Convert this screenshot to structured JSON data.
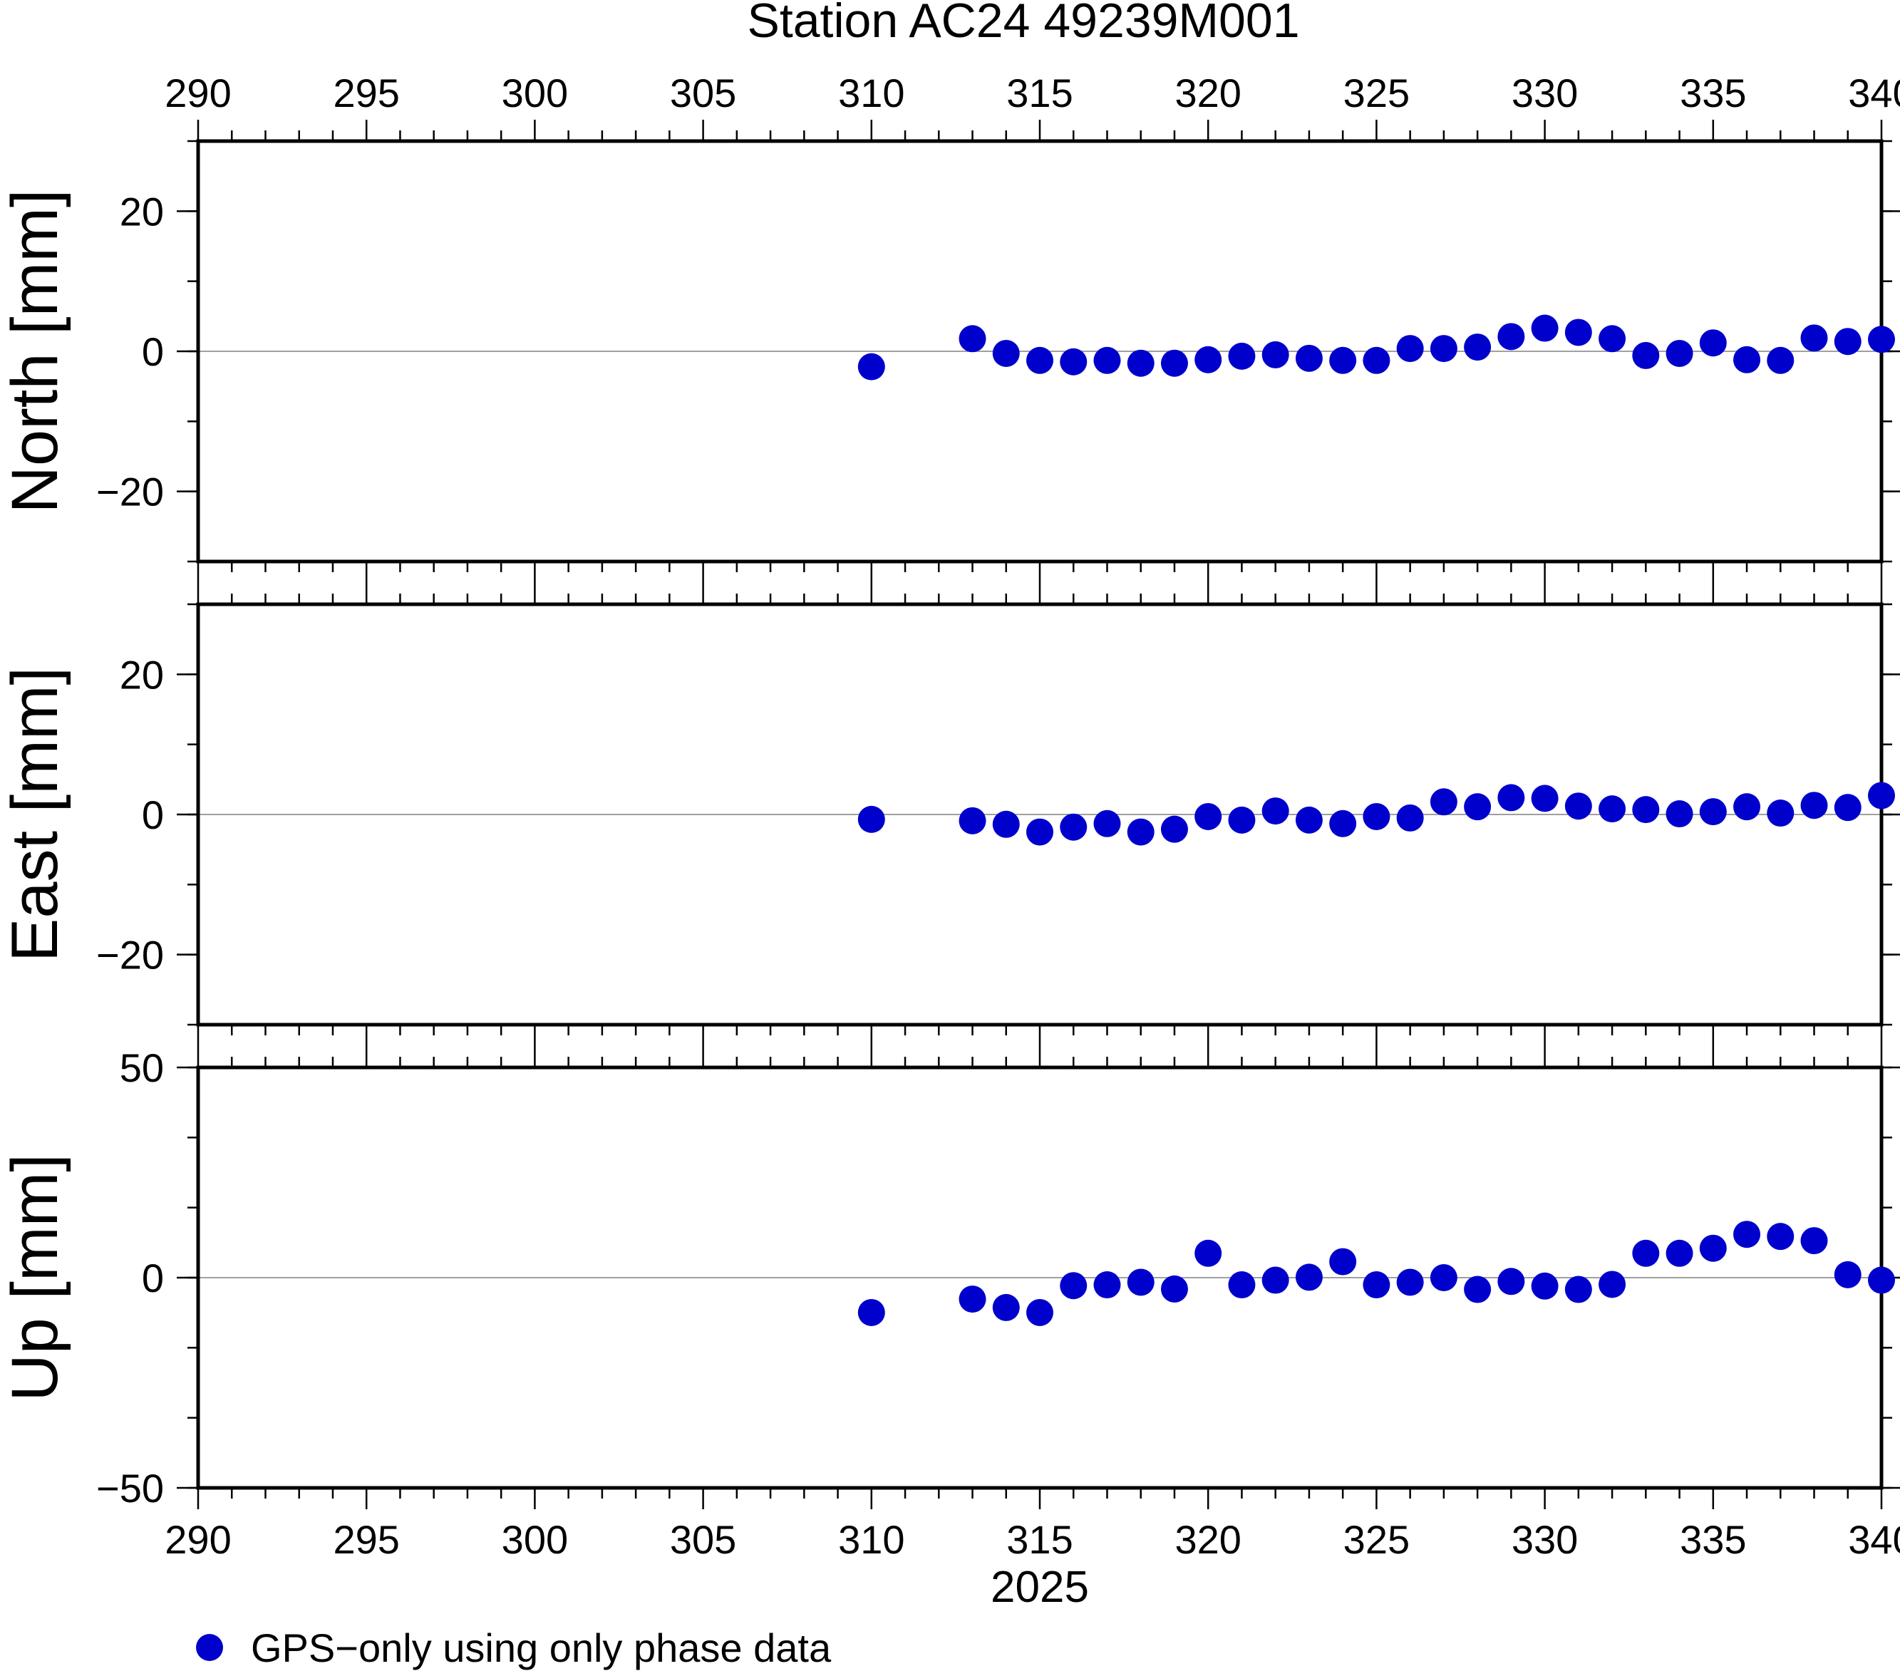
{
  "chart_data": {
    "type": "scatter",
    "title": "Station AC24 49239M001",
    "xlabel": "2025",
    "xlim": [
      290,
      340
    ],
    "x_ticks": [
      290,
      295,
      300,
      305,
      310,
      315,
      320,
      325,
      330,
      335,
      340
    ],
    "grid": false,
    "legend": {
      "placement": "bottom-left",
      "entries": [
        {
          "label": "GPS−only using only phase data",
          "color": "#0000cc"
        }
      ]
    },
    "marker_color": "#0000cc",
    "x": [
      310,
      313,
      314,
      315,
      316,
      317,
      318,
      319,
      320,
      321,
      322,
      323,
      324,
      325,
      326,
      327,
      328,
      329,
      330,
      331,
      332,
      333,
      334,
      335,
      336,
      337,
      338,
      339,
      340
    ],
    "panels": [
      {
        "name": "north",
        "ylabel": "North [mm]",
        "ylim": [
          -30,
          30
        ],
        "y_ticks": [
          20,
          0,
          -20
        ],
        "y_tick_labels": [
          "20",
          "0",
          "−20"
        ],
        "values": [
          -2.2,
          1.8,
          -0.3,
          -1.3,
          -1.5,
          -1.3,
          -1.7,
          -1.7,
          -1.2,
          -0.7,
          -0.5,
          -1.0,
          -1.3,
          -1.3,
          0.4,
          0.4,
          0.6,
          2.1,
          3.3,
          2.7,
          1.8,
          -0.6,
          -0.3,
          1.2,
          -1.2,
          -1.3,
          1.9,
          1.4,
          1.7
        ]
      },
      {
        "name": "east",
        "ylabel": "East [mm]",
        "ylim": [
          -30,
          30
        ],
        "y_ticks": [
          20,
          0,
          -20
        ],
        "y_tick_labels": [
          "20",
          "0",
          "−20"
        ],
        "values": [
          -0.7,
          -0.9,
          -1.4,
          -2.5,
          -1.8,
          -1.3,
          -2.5,
          -2.1,
          -0.3,
          -0.8,
          0.5,
          -0.8,
          -1.3,
          -0.3,
          -0.5,
          1.8,
          1.1,
          2.4,
          2.3,
          1.2,
          0.8,
          0.7,
          0.1,
          0.4,
          1.1,
          0.2,
          1.3,
          1.0,
          2.7
        ]
      },
      {
        "name": "up",
        "ylabel": "Up [mm]",
        "ylim": [
          -50,
          50
        ],
        "y_ticks": [
          50,
          0,
          -50
        ],
        "y_tick_labels": [
          "50",
          "0",
          "−50"
        ],
        "values": [
          -8.3,
          -5.1,
          -7.1,
          -8.3,
          -1.9,
          -1.7,
          -1.1,
          -2.7,
          5.8,
          -1.7,
          -0.6,
          0.1,
          3.8,
          -1.7,
          -1.1,
          0.0,
          -2.8,
          -0.9,
          -2.0,
          -2.8,
          -1.6,
          5.8,
          5.8,
          7.0,
          10.3,
          9.8,
          8.8,
          0.7,
          -0.6
        ]
      }
    ]
  }
}
